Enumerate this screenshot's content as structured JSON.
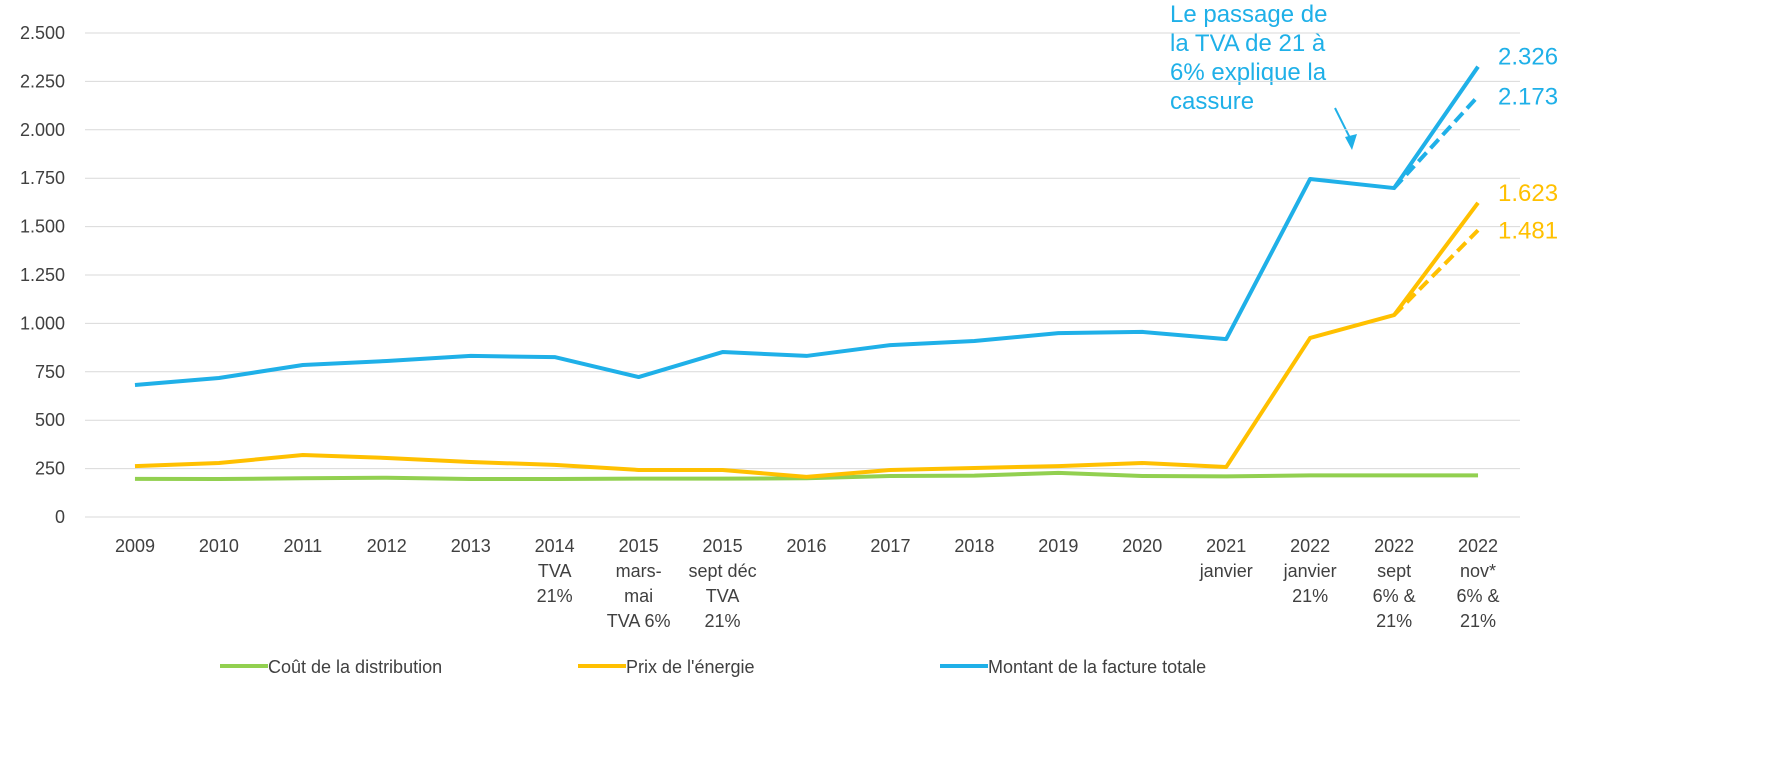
{
  "chart_data": {
    "type": "line",
    "categories": [
      "2009",
      "2010",
      "2011",
      "2012",
      "2013",
      "2014\nTVA\n21%",
      "2015\nmars-\nmai\nTVA 6%",
      "2015\nsept déc\nTVA\n21%",
      "2016",
      "2017",
      "2018",
      "2019",
      "2020",
      "2021\njanvier",
      "2022\njanvier\n21%",
      "2022\nsept\n6% &\n21%",
      "2022\nnov*\n6% &\n21%"
    ],
    "series": [
      {
        "name": "Coût de la distribution",
        "color": "#92d050",
        "values": [
          197,
          196,
          200,
          203,
          196,
          196,
          198,
          198,
          200,
          212,
          214,
          228,
          212,
          210,
          215,
          215,
          215
        ]
      },
      {
        "name": "Prix de l'énergie",
        "color": "#ffc000",
        "values": [
          263,
          279,
          320,
          305,
          284,
          269,
          243,
          243,
          207,
          243,
          253,
          263,
          279,
          258,
          925,
          1043,
          1623
        ],
        "value_labels": [
          null,
          null,
          null,
          null,
          null,
          null,
          null,
          null,
          null,
          null,
          null,
          null,
          null,
          null,
          null,
          null,
          "1.623"
        ]
      },
      {
        "name": "Montant de la facture totale",
        "color": "#1fb0e8",
        "values": [
          682,
          718,
          785,
          806,
          832,
          826,
          723,
          852,
          832,
          888,
          909,
          950,
          956,
          919,
          1746,
          1699,
          2326
        ],
        "value_labels": [
          null,
          null,
          null,
          null,
          null,
          null,
          null,
          null,
          null,
          null,
          null,
          null,
          null,
          null,
          null,
          null,
          "2.326"
        ]
      },
      {
        "color": "#ffc000",
        "dashed": true,
        "values": [
          null,
          null,
          null,
          null,
          null,
          null,
          null,
          null,
          null,
          null,
          null,
          null,
          null,
          null,
          null,
          1043,
          1481
        ],
        "value_labels": [
          null,
          null,
          null,
          null,
          null,
          null,
          null,
          null,
          null,
          null,
          null,
          null,
          null,
          null,
          null,
          null,
          "1.481"
        ]
      },
      {
        "color": "#1fb0e8",
        "dashed": true,
        "values": [
          null,
          null,
          null,
          null,
          null,
          null,
          null,
          null,
          null,
          null,
          null,
          null,
          null,
          null,
          null,
          1699,
          2173
        ],
        "value_labels": [
          null,
          null,
          null,
          null,
          null,
          null,
          null,
          null,
          null,
          null,
          null,
          null,
          null,
          null,
          null,
          null,
          "2.173"
        ]
      }
    ],
    "annotation": "Le passage de\nla TVA de 21 à\n6% explique la\ncassure",
    "annotation_color": "#1fb0e8",
    "ylim": [
      0,
      2500
    ],
    "yticks": [
      0,
      250,
      500,
      750,
      {
        "value": 1000,
        "label": "1.000"
      },
      {
        "value": 1250,
        "label": "1.250"
      },
      {
        "value": 1500,
        "label": "1.500"
      },
      {
        "value": 1750,
        "label": "1.750"
      },
      {
        "value": 2000,
        "label": "2.000"
      },
      {
        "value": 2250,
        "label": "2.250"
      },
      {
        "value": 2500,
        "label": "2.500"
      }
    ],
    "grid": true,
    "legend": "bottom"
  }
}
